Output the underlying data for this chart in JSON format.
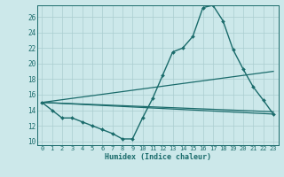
{
  "xlabel": "Humidex (Indice chaleur)",
  "background_color": "#cce8ea",
  "line_color": "#1a6b6b",
  "grid_color": "#aacdd0",
  "xlim": [
    -0.5,
    23.5
  ],
  "ylim": [
    9.5,
    27.5
  ],
  "yticks": [
    10,
    12,
    14,
    16,
    18,
    20,
    22,
    24,
    26
  ],
  "xticks": [
    0,
    1,
    2,
    3,
    4,
    5,
    6,
    7,
    8,
    9,
    10,
    11,
    12,
    13,
    14,
    15,
    16,
    17,
    18,
    19,
    20,
    21,
    22,
    23
  ],
  "lines": [
    {
      "x": [
        0,
        1,
        2,
        3,
        4,
        5,
        6,
        7,
        8,
        9,
        10,
        11,
        12,
        13,
        14,
        15,
        16,
        17,
        18,
        19,
        20,
        21,
        22,
        23
      ],
      "y": [
        15,
        14,
        13,
        13,
        12.5,
        12,
        11.5,
        11,
        10.3,
        10.3,
        13,
        15.5,
        18.5,
        21.5,
        22,
        23.5,
        27.2,
        27.5,
        25.5,
        21.8,
        19.3,
        17.0,
        15.3,
        13.5
      ],
      "marker": "D",
      "markersize": 2.0,
      "linewidth": 1.0,
      "has_marker": true
    },
    {
      "x": [
        0,
        23
      ],
      "y": [
        15,
        13.5
      ],
      "marker": null,
      "linewidth": 0.9,
      "has_marker": false
    },
    {
      "x": [
        0,
        23
      ],
      "y": [
        15,
        19.0
      ],
      "marker": null,
      "linewidth": 0.9,
      "has_marker": false
    },
    {
      "x": [
        0,
        23
      ],
      "y": [
        15,
        13.8
      ],
      "marker": null,
      "linewidth": 0.9,
      "has_marker": false
    }
  ]
}
